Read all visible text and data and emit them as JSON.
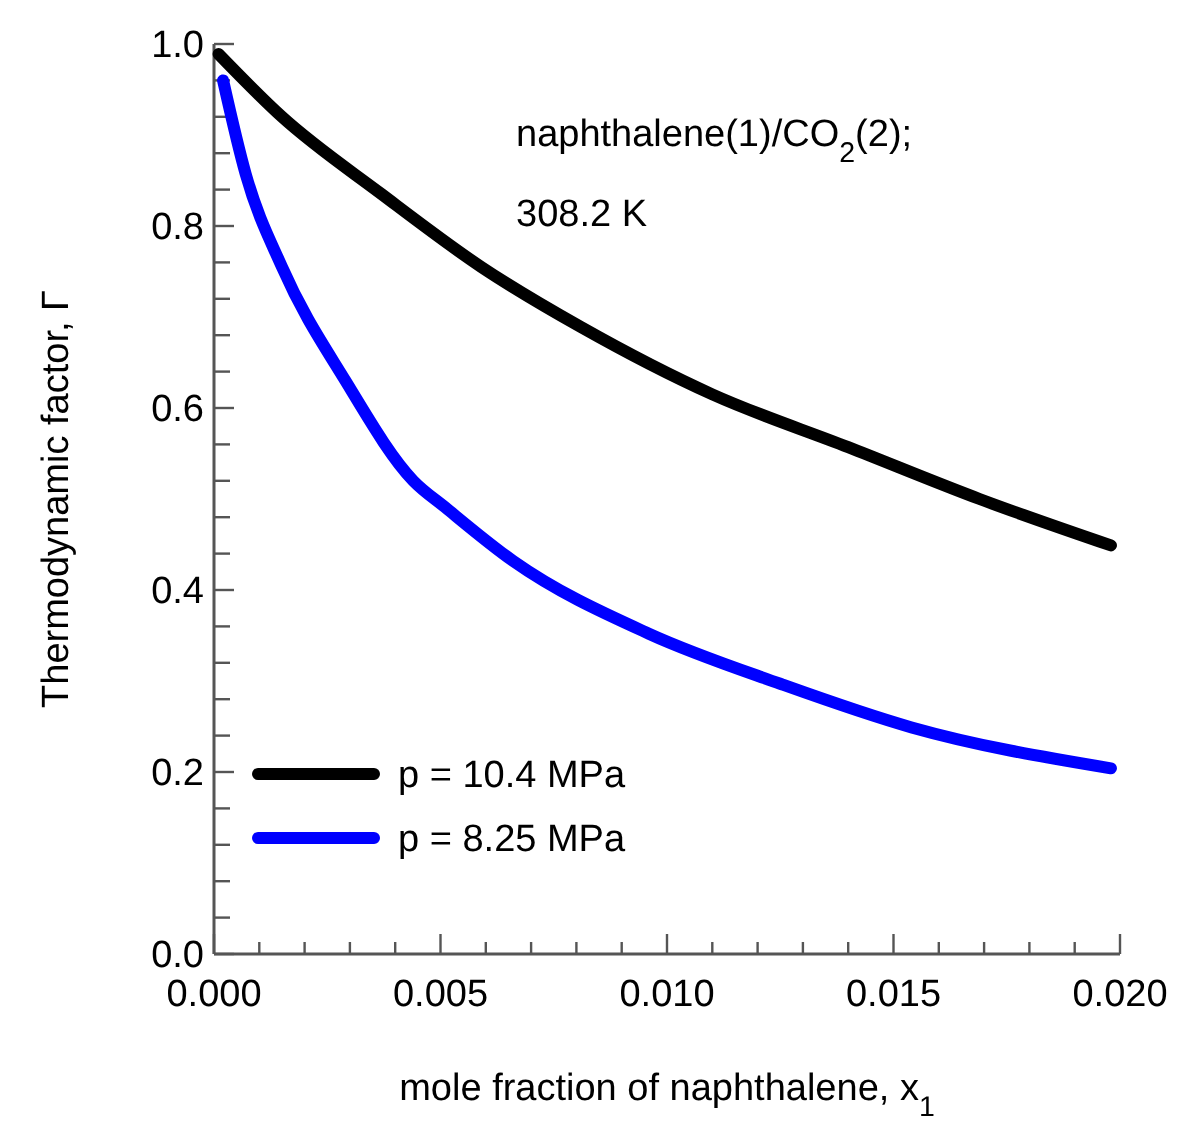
{
  "chart_data": {
    "type": "line",
    "xlabel": "mole fraction of naphthalene, x$_{1}$",
    "ylabel": "Thermodynamic factor, Γ",
    "annotations": [
      "naphthalene(1)/CO$_{2}$(2);",
      "308.2 K"
    ],
    "xlim": [
      0,
      0.02
    ],
    "ylim": [
      0,
      1
    ],
    "xticks": [
      {
        "value": 0,
        "label": "0.000"
      },
      {
        "value": 0.001,
        "label": null
      },
      {
        "value": 0.002,
        "label": null
      },
      {
        "value": 0.003,
        "label": null
      },
      {
        "value": 0.004,
        "label": null
      },
      {
        "value": 0.005,
        "label": "0.005"
      },
      {
        "value": 0.006,
        "label": null
      },
      {
        "value": 0.007,
        "label": null
      },
      {
        "value": 0.008,
        "label": null
      },
      {
        "value": 0.009,
        "label": null
      },
      {
        "value": 0.01,
        "label": "0.010"
      },
      {
        "value": 0.011,
        "label": null
      },
      {
        "value": 0.012,
        "label": null
      },
      {
        "value": 0.013,
        "label": null
      },
      {
        "value": 0.014,
        "label": null
      },
      {
        "value": 0.015,
        "label": "0.015"
      },
      {
        "value": 0.016,
        "label": null
      },
      {
        "value": 0.017,
        "label": null
      },
      {
        "value": 0.018,
        "label": null
      },
      {
        "value": 0.019,
        "label": null
      },
      {
        "value": 0.02,
        "label": "0.020"
      }
    ],
    "yticks": [
      {
        "value": 0,
        "label": "0.0"
      },
      {
        "value": 0.04,
        "label": null
      },
      {
        "value": 0.08,
        "label": null
      },
      {
        "value": 0.12,
        "label": null
      },
      {
        "value": 0.16,
        "label": null
      },
      0.2,
      {
        "value": 0.24,
        "label": null
      },
      {
        "value": 0.28,
        "label": null
      },
      {
        "value": 0.32,
        "label": null
      },
      {
        "value": 0.36,
        "label": null
      },
      0.4,
      {
        "value": 0.44,
        "label": null
      },
      {
        "value": 0.48,
        "label": null
      },
      {
        "value": 0.52,
        "label": null
      },
      {
        "value": 0.56,
        "label": null
      },
      0.6,
      {
        "value": 0.64,
        "label": null
      },
      {
        "value": 0.68,
        "label": null
      },
      {
        "value": 0.72,
        "label": null
      },
      {
        "value": 0.76,
        "label": null
      },
      0.8,
      {
        "value": 0.84,
        "label": null
      },
      {
        "value": 0.88,
        "label": null
      },
      {
        "value": 0.92,
        "label": null
      },
      {
        "value": 0.96,
        "label": null
      },
      {
        "value": 1,
        "label": "1.0"
      }
    ],
    "legend": "bottom left",
    "marker": "none",
    "line_style": "solid",
    "grid": false,
    "series": [
      {
        "name": "p = 10.4 MPa",
        "color": "#000000",
        "x": [
          0.0001,
          0.0015,
          0.0037,
          0.0059,
          0.0081,
          0.011,
          0.014,
          0.0169,
          0.0198
        ],
        "values": [
          0.989,
          0.92,
          0.835,
          0.755,
          0.689,
          0.615,
          0.557,
          0.5,
          0.449
        ]
      },
      {
        "name": "p = 8.25 MPa",
        "color": "#0000ff",
        "x": [
          0.0002,
          0.0007,
          0.0015,
          0.0029,
          0.0044,
          0.0051,
          0.0066,
          0.0096,
          0.0125,
          0.0154,
          0.0198
        ],
        "values": [
          0.96,
          0.857,
          0.755,
          0.63,
          0.52,
          0.491,
          0.432,
          0.352,
          0.297,
          0.249,
          0.204
        ]
      }
    ]
  }
}
